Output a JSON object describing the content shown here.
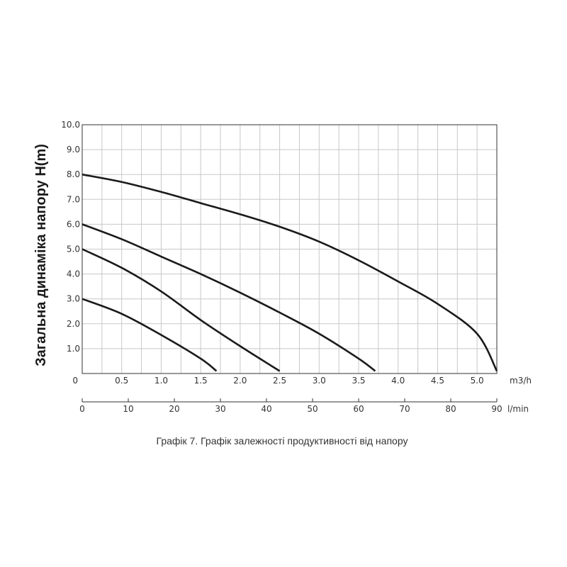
{
  "chart_data": {
    "type": "line",
    "title": "",
    "caption": "Графік 7. Графік залежності продуктивності від напору",
    "ylabel": "Загальна динаміка напору H(m)",
    "xlabel_primary": "m3/h",
    "xlabel_secondary": "l/min",
    "ylim": [
      0,
      10
    ],
    "xlim": [
      0,
      5.25
    ],
    "xlim_secondary": [
      0,
      90
    ],
    "grid": true,
    "y_ticks": [
      "1.0",
      "2.0",
      "3.0",
      "4.0",
      "5.0",
      "6.0",
      "7.0",
      "8.0",
      "9.0",
      "10.0"
    ],
    "x_ticks": [
      "0",
      "0.5",
      "1.0",
      "1.5",
      "2.0",
      "2.5",
      "3.0",
      "3.5",
      "4.0",
      "4.5",
      "5.0"
    ],
    "x_ticks_secondary": [
      "0",
      "10",
      "20",
      "30",
      "40",
      "50",
      "60",
      "70",
      "80",
      "90"
    ],
    "series": [
      {
        "x": [
          0,
          0.5,
          1.0,
          1.5,
          1.7
        ],
        "y": [
          3.0,
          2.4,
          1.55,
          0.6,
          0.1
        ]
      },
      {
        "x": [
          0,
          0.5,
          1.0,
          1.5,
          2.0,
          2.5
        ],
        "y": [
          5.0,
          4.25,
          3.3,
          2.15,
          1.1,
          0.1
        ]
      },
      {
        "x": [
          0,
          0.5,
          1.0,
          1.5,
          2.0,
          2.5,
          3.0,
          3.5,
          3.71
        ],
        "y": [
          6.0,
          5.4,
          4.7,
          4.0,
          3.25,
          2.45,
          1.6,
          0.6,
          0.1
        ]
      },
      {
        "x": [
          0,
          0.5,
          1.0,
          1.5,
          2.0,
          2.5,
          3.0,
          3.5,
          4.0,
          4.5,
          5.0,
          5.25
        ],
        "y": [
          8.0,
          7.7,
          7.3,
          6.85,
          6.4,
          5.9,
          5.3,
          4.55,
          3.7,
          2.8,
          1.6,
          0.1
        ]
      }
    ]
  }
}
